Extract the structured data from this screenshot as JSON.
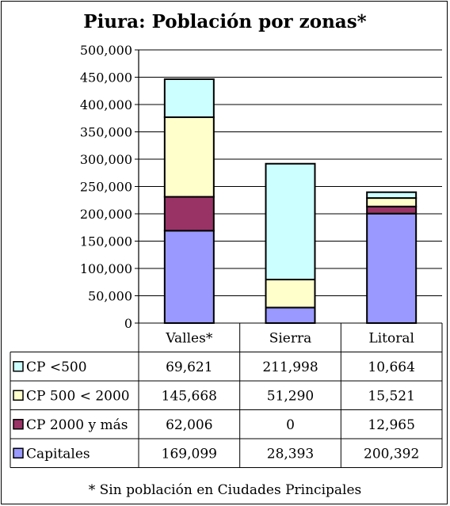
{
  "chart_data": {
    "type": "bar",
    "stacked": true,
    "title": "Piura: Población por zonas*",
    "footnote": "* Sin población en Ciudades Principales",
    "categories": [
      "Valles*",
      "Sierra",
      "Litoral"
    ],
    "ylim": [
      0,
      500000
    ],
    "yticks": [
      "0",
      "50,000",
      "100,000",
      "150,000",
      "200,000",
      "250,000",
      "300,000",
      "350,000",
      "400,000",
      "450,000",
      "500,000"
    ],
    "grid": true,
    "legend": "data-table",
    "series": [
      {
        "name": "Capitales",
        "color": "#9999FF",
        "values": [
          169099,
          28393,
          200392
        ],
        "labels": [
          "169,099",
          "28,393",
          "200,392"
        ]
      },
      {
        "name": "CP 2000 y más",
        "color": "#993366",
        "values": [
          62006,
          0,
          12965
        ],
        "labels": [
          "62,006",
          "0",
          "12,965"
        ]
      },
      {
        "name": "CP 500 < 2000",
        "color": "#FFFFCC",
        "values": [
          145668,
          51290,
          15521
        ],
        "labels": [
          "145,668",
          "51,290",
          "15,521"
        ]
      },
      {
        "name": "CP <500",
        "color": "#CCFFFF",
        "values": [
          69621,
          211998,
          10664
        ],
        "labels": [
          "69,621",
          "211,998",
          "10,664"
        ]
      }
    ],
    "table_order": [
      3,
      2,
      1,
      0
    ]
  }
}
